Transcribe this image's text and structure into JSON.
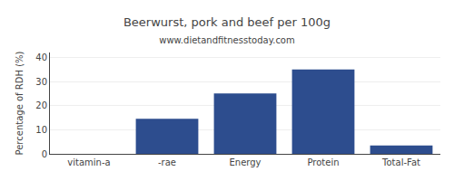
{
  "chart_data": {
    "type": "bar",
    "title": "Beerwurst, pork and beef per 100g",
    "subtitle": "www.dietandfitnesstoday.com",
    "categories": [
      "vitamin-a",
      "-rae",
      "Energy",
      "Protein",
      "Total-Fat"
    ],
    "values": [
      0,
      14.5,
      25,
      35,
      3.5
    ],
    "color": "#2d4d8e",
    "ylabel": "Percentage of RDH (%)",
    "ylim": [
      0,
      42
    ],
    "yticks": [
      0,
      10,
      20,
      30,
      40
    ],
    "grid": true
  }
}
